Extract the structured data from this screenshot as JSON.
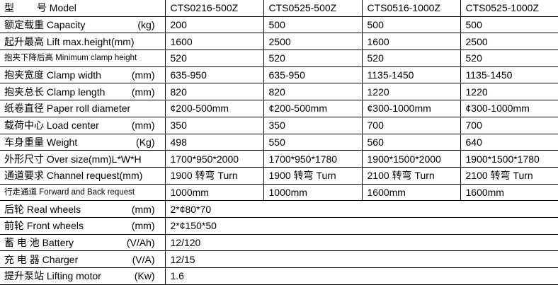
{
  "models": [
    "CTS0216-500Z",
    "CTS0525-500Z",
    "CTS0516-1000Z",
    "CTS0525-1000Z"
  ],
  "header_label": "型　　 号 Model",
  "rows": [
    {
      "label": "额定载重  Capacity",
      "unit": "(kg)",
      "values": [
        "200",
        "500",
        "500",
        "500"
      ]
    },
    {
      "label": "起升最高 Lift max.height(mm)",
      "unit": "",
      "values": [
        "1600",
        "2500",
        "1600",
        "2500"
      ]
    },
    {
      "label": "抱夹下降后高 Minimum clamp height",
      "unit": "",
      "small": true,
      "values": [
        "520",
        "520",
        "520",
        "520"
      ]
    },
    {
      "label": "抱夹宽度 Clamp width",
      "unit": "(mm)",
      "values": [
        "635-950",
        "635-950",
        "1135-1450",
        "1135-1450"
      ]
    },
    {
      "label": "抱夹总长 Clamp length",
      "unit": "(mm)",
      "values": [
        "820",
        "820",
        "1220",
        "1220"
      ]
    },
    {
      "label": "纸卷直径 Paper roll diameter",
      "unit": "",
      "values": [
        "¢200-500mm",
        "¢200-500mm",
        "¢300-1000mm",
        "¢300-1000mm"
      ]
    },
    {
      "label": "载荷中心 Load center",
      "unit": "(mm)",
      "values": [
        "350",
        "350",
        "700",
        "700"
      ]
    },
    {
      "label": "车身重量 Weight",
      "unit": "(Kg)",
      "values": [
        "498",
        "550",
        "560",
        "640"
      ]
    },
    {
      "label": "外形尺寸 Over size(mm)L*W*H",
      "unit": "",
      "values": [
        "1700*950*2000",
        "1700*950*1780",
        "1900*1500*2000",
        "1900*1500*1780"
      ]
    },
    {
      "label": "通道要求  Channel request(mm)",
      "unit": "",
      "values": [
        "1900 转弯 Turn",
        "1900 转弯 Turn",
        "2100 转弯 Turn",
        "2100 转弯 Turn"
      ]
    },
    {
      "label": "行走通道 Forward and Back request",
      "unit": "",
      "small": true,
      "values": [
        "1000mm",
        "1000mm",
        "1600mm",
        "1600mm"
      ]
    },
    {
      "label": "后轮  Real wheels",
      "unit": "(mm)",
      "values": [
        "2*¢80*70"
      ]
    },
    {
      "label": "前轮 Front wheels",
      "unit": "(mm)",
      "values": [
        "2*¢150*50"
      ]
    },
    {
      "label": "蓄  电  池  Battery",
      "unit": "(V/Ah)",
      "values": [
        "12/120"
      ]
    },
    {
      "label": "充  电  器  Charger",
      "unit": "(V/A)",
      "values": [
        "12/15"
      ]
    },
    {
      "label": "提升泵站 Lifting motor",
      "unit": "(Kw)",
      "values": [
        "1.6"
      ]
    }
  ]
}
